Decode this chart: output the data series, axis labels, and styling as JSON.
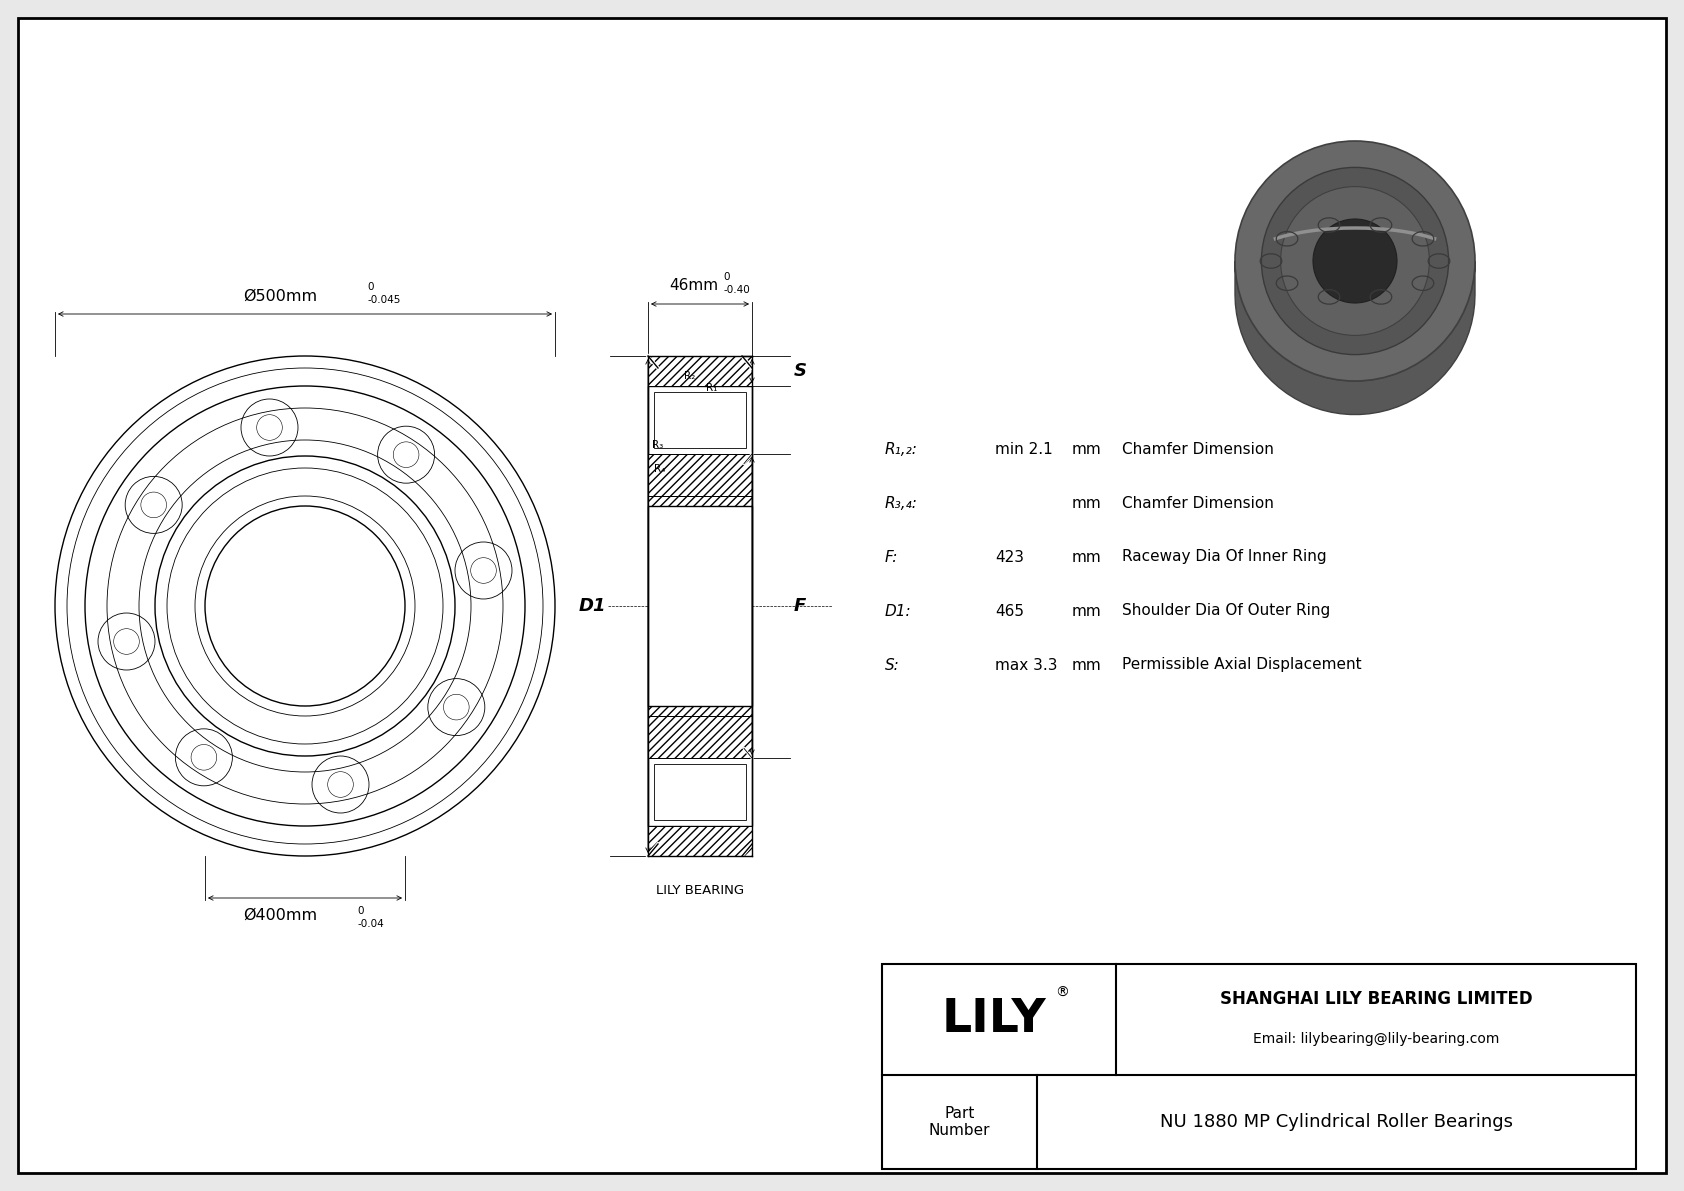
{
  "bg_color": "#e8e8e8",
  "drawing_bg": "#ffffff",
  "line_color": "#000000",
  "outer_diameter_label": "Ø500mm",
  "outer_diameter_tol_upper": "0",
  "outer_diameter_tol_lower": "-0.045",
  "inner_diameter_label": "Ø400mm",
  "inner_diameter_tol_upper": "0",
  "inner_diameter_tol_lower": "-0.04",
  "width_label": "46mm",
  "width_tol_upper": "0",
  "width_tol_lower": "-0.40",
  "label_S": "S",
  "label_D1": "D1",
  "label_F": "F",
  "label_R1": "R₁",
  "label_R2": "R₂",
  "label_R3": "R₃",
  "label_R4": "R₄",
  "spec_labels": [
    "R₁,₂:",
    "R₃,₄:",
    "F:",
    "D1:",
    "S:"
  ],
  "spec_values": [
    "min 2.1",
    "",
    "423",
    "465",
    "max 3.3"
  ],
  "spec_units": [
    "mm",
    "mm",
    "mm",
    "mm",
    "mm"
  ],
  "spec_descriptions": [
    "Chamfer Dimension",
    "Chamfer Dimension",
    "Raceway Dia Of Inner Ring",
    "Shoulder Dia Of Outer Ring",
    "Permissible Axial Displacement"
  ],
  "lily_name": "LILY",
  "lily_registered": "®",
  "company_name": "SHANGHAI LILY BEARING LIMITED",
  "company_email": "Email: lilybearing@lily-bearing.com",
  "part_label": "Part\nNumber",
  "part_number": "NU 1880 MP Cylindrical Roller Bearings",
  "lily_bearing_label": "LILY BEARING"
}
